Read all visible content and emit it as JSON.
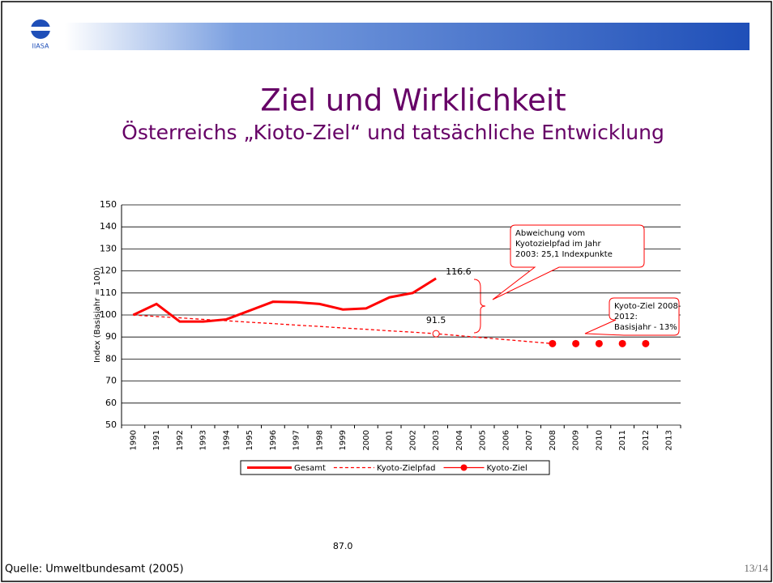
{
  "slide": {
    "title": "Ziel und Wirklichkeit",
    "subtitle": "Österreichs „Kioto-Ziel“ und tatsächliche Entwicklung",
    "source": "Quelle: Umweltbundesamt (2005)",
    "page": "13/14",
    "logo": "IIASA"
  },
  "chart_data": {
    "type": "line",
    "ylabel": "Index (Basisjahr = 100)",
    "categories": [
      "1990",
      "1991",
      "1992",
      "1993",
      "1994",
      "1995",
      "1996",
      "1997",
      "1998",
      "1999",
      "2000",
      "2001",
      "2002",
      "2003",
      "2004",
      "2005",
      "2006",
      "2007",
      "2008",
      "2009",
      "2010",
      "2011",
      "2012",
      "2013"
    ],
    "series": [
      {
        "name": "Gesamt",
        "color": "#ff0000",
        "style": "solid",
        "values": [
          100,
          105,
          97,
          97,
          98,
          102,
          106,
          105.8,
          105,
          102.5,
          103,
          108,
          110,
          116.6,
          null,
          null,
          null,
          null,
          null,
          null,
          null,
          null,
          null,
          null
        ],
        "value_labels": [
          null,
          null,
          null,
          null,
          null,
          null,
          null,
          null,
          null,
          null,
          null,
          null,
          null,
          "116.6",
          null,
          null,
          null,
          null,
          null,
          null,
          null,
          null,
          null,
          null
        ]
      },
      {
        "name": "Kyoto-Zielpfad",
        "color": "#ff0000",
        "style": "dashed",
        "values": [
          100,
          99.3,
          98.7,
          98,
          97.4,
          96.7,
          96.1,
          95.4,
          94.8,
          94.1,
          93.5,
          92.8,
          92.2,
          91.5,
          90.6,
          89.7,
          88.8,
          87.9,
          87,
          null,
          null,
          null,
          null,
          null
        ],
        "value_labels": [
          null,
          null,
          null,
          null,
          null,
          null,
          null,
          null,
          null,
          null,
          null,
          null,
          null,
          "91.5",
          null,
          null,
          null,
          null,
          null,
          null,
          null,
          null,
          null,
          null
        ]
      },
      {
        "name": "Kyoto-Ziel",
        "color": "#ff0000",
        "style": "markers",
        "values": [
          null,
          null,
          null,
          null,
          null,
          null,
          null,
          null,
          null,
          null,
          null,
          null,
          null,
          null,
          null,
          null,
          null,
          null,
          87,
          87,
          87,
          87,
          87,
          null
        ],
        "value_labels": [
          null,
          null,
          null,
          null,
          null,
          null,
          null,
          null,
          null,
          "87.0",
          null,
          null,
          null,
          null,
          null,
          null,
          null,
          null,
          null,
          null,
          null,
          null,
          null,
          null
        ]
      }
    ],
    "ylim": [
      50,
      150
    ],
    "yticks": [
      50,
      60,
      70,
      80,
      90,
      100,
      110,
      120,
      130,
      140,
      150
    ],
    "grid": true,
    "annotations": [
      {
        "lines": [
          "Abweichung vom",
          "Kyotozielpfad im Jahr",
          "2003: 25,1 Indexpunkte"
        ]
      },
      {
        "lines": [
          "Kyoto-Ziel 2008-",
          "2012:",
          "Basisjahr - 13%"
        ]
      }
    ]
  }
}
